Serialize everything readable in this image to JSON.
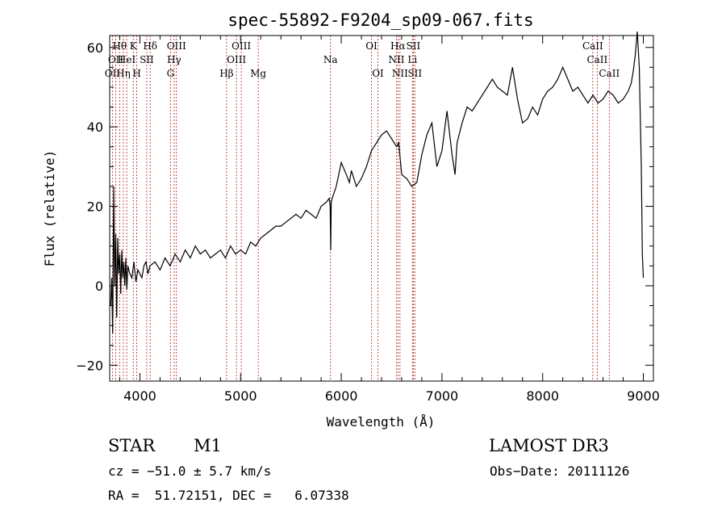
{
  "chart_data": {
    "type": "line",
    "title": "spec-55892-F9204_sp09-067.fits",
    "xlabel": "Wavelength (Å)",
    "ylabel": "Flux (relative)",
    "xlim": [
      3700,
      9100
    ],
    "ylim": [
      -24,
      63
    ],
    "xticks": [
      4000,
      5000,
      6000,
      7000,
      8000,
      9000
    ],
    "yticks": [
      -20,
      0,
      20,
      40,
      60
    ],
    "series": [
      {
        "x": [
          3710,
          3720,
          3730,
          3740,
          3750,
          3760,
          3770,
          3780,
          3790,
          3800,
          3810,
          3820,
          3830,
          3840,
          3850,
          3860,
          3870,
          3880,
          3890,
          3900,
          3920,
          3940,
          3960,
          3980,
          4000,
          4020,
          4040,
          4060,
          4080,
          4100,
          4150,
          4200,
          4250,
          4300,
          4350,
          4400,
          4450,
          4500,
          4550,
          4600,
          4650,
          4700,
          4750,
          4800,
          4850,
          4900,
          4950,
          5000,
          5050,
          5100,
          5150,
          5200,
          5250,
          5300,
          5350,
          5400,
          5450,
          5500,
          5550,
          5600,
          5650,
          5700,
          5750,
          5800,
          5850,
          5880,
          5890,
          5895,
          5900,
          5910,
          5950,
          6000,
          6050,
          6080,
          6100,
          6150,
          6200,
          6250,
          6300,
          6350,
          6400,
          6450,
          6500,
          6550,
          6570,
          6600,
          6650,
          6700,
          6750,
          6800,
          6850,
          6900,
          6950,
          7000,
          7050,
          7100,
          7130,
          7150,
          7200,
          7250,
          7300,
          7350,
          7400,
          7450,
          7500,
          7550,
          7600,
          7650,
          7700,
          7750,
          7800,
          7850,
          7900,
          7950,
          8000,
          8050,
          8100,
          8150,
          8200,
          8250,
          8300,
          8350,
          8400,
          8450,
          8500,
          8550,
          8600,
          8650,
          8700,
          8750,
          8800,
          8850,
          8880,
          8900,
          8920,
          8940,
          8960,
          8980,
          8990,
          9000
        ],
        "y": [
          -5,
          2,
          -12,
          25,
          0,
          13,
          -8,
          12,
          3,
          8,
          -2,
          9,
          2,
          6,
          0,
          7,
          -1,
          5,
          4,
          3,
          2,
          6,
          1,
          4,
          3,
          2,
          5,
          6,
          3,
          5,
          6,
          4,
          7,
          5,
          8,
          6,
          9,
          7,
          10,
          8,
          9,
          7,
          8,
          9,
          7,
          10,
          8,
          9,
          8,
          11,
          10,
          12,
          13,
          14,
          15,
          15,
          16,
          17,
          18,
          17,
          19,
          18,
          17,
          20,
          21,
          22,
          20,
          9,
          21,
          22,
          25,
          31,
          28,
          26,
          29,
          25,
          27,
          30,
          34,
          36,
          38,
          39,
          37,
          35,
          36,
          28,
          27,
          25,
          26,
          33,
          38,
          41,
          30,
          34,
          44,
          33,
          28,
          36,
          41,
          45,
          44,
          46,
          48,
          50,
          52,
          50,
          49,
          48,
          55,
          47,
          41,
          42,
          45,
          43,
          47,
          49,
          50,
          52,
          55,
          52,
          49,
          50,
          48,
          46,
          48,
          46,
          47,
          49,
          48,
          46,
          47,
          49,
          51,
          54,
          58,
          64,
          55,
          30,
          8,
          2
        ]
      }
    ],
    "emission_lines": [
      {
        "wl": 3727,
        "label": "OII",
        "row": 2
      },
      {
        "wl": 3760,
        "label": "OII",
        "row": 1
      },
      {
        "wl": 3798,
        "label": "Hθ",
        "row": 0
      },
      {
        "wl": 3835,
        "label": "Hη",
        "row": 2
      },
      {
        "wl": 3869,
        "label": "HeI",
        "row": 1
      },
      {
        "wl": 3934,
        "label": "K",
        "row": 0
      },
      {
        "wl": 3969,
        "label": "H",
        "row": 2
      },
      {
        "wl": 4068,
        "label": "SII",
        "row": 1
      },
      {
        "wl": 4102,
        "label": "Hδ",
        "row": 0
      },
      {
        "wl": 4304,
        "label": "G",
        "row": 2
      },
      {
        "wl": 4340,
        "label": "Hγ",
        "row": 1
      },
      {
        "wl": 4363,
        "label": "OIII",
        "row": 0
      },
      {
        "wl": 4861,
        "label": "Hβ",
        "row": 2
      },
      {
        "wl": 4959,
        "label": "OIII",
        "row": 1
      },
      {
        "wl": 5007,
        "label": "OIII",
        "row": 0
      },
      {
        "wl": 5175,
        "label": "Mg",
        "row": 2
      },
      {
        "wl": 5893,
        "label": "Na",
        "row": 1
      },
      {
        "wl": 6300,
        "label": "OI",
        "row": 0
      },
      {
        "wl": 6364,
        "label": "OI",
        "row": 2
      },
      {
        "wl": 6548,
        "label": "NII",
        "row": 1
      },
      {
        "wl": 6563,
        "label": "Hα",
        "row": 0
      },
      {
        "wl": 6583,
        "label": "NII",
        "row": 2
      },
      {
        "wl": 6707,
        "label": "Li",
        "row": 1
      },
      {
        "wl": 6716,
        "label": "SII",
        "row": 0
      },
      {
        "wl": 6731,
        "label": "SII",
        "row": 2
      },
      {
        "wl": 8498,
        "label": "CaII",
        "row": 0
      },
      {
        "wl": 8542,
        "label": "CaII",
        "row": 1
      },
      {
        "wl": 8662,
        "label": "CaII",
        "row": 2
      }
    ]
  },
  "info": {
    "object_class": "STAR",
    "subclass": "M1",
    "survey": "LAMOST DR3",
    "redshift": "cz = −51.0 ± 5.7 km/s",
    "obs_date": "Obs−Date: 20111126",
    "coords": "RA =  51.72151, DEC =   6.07338"
  }
}
